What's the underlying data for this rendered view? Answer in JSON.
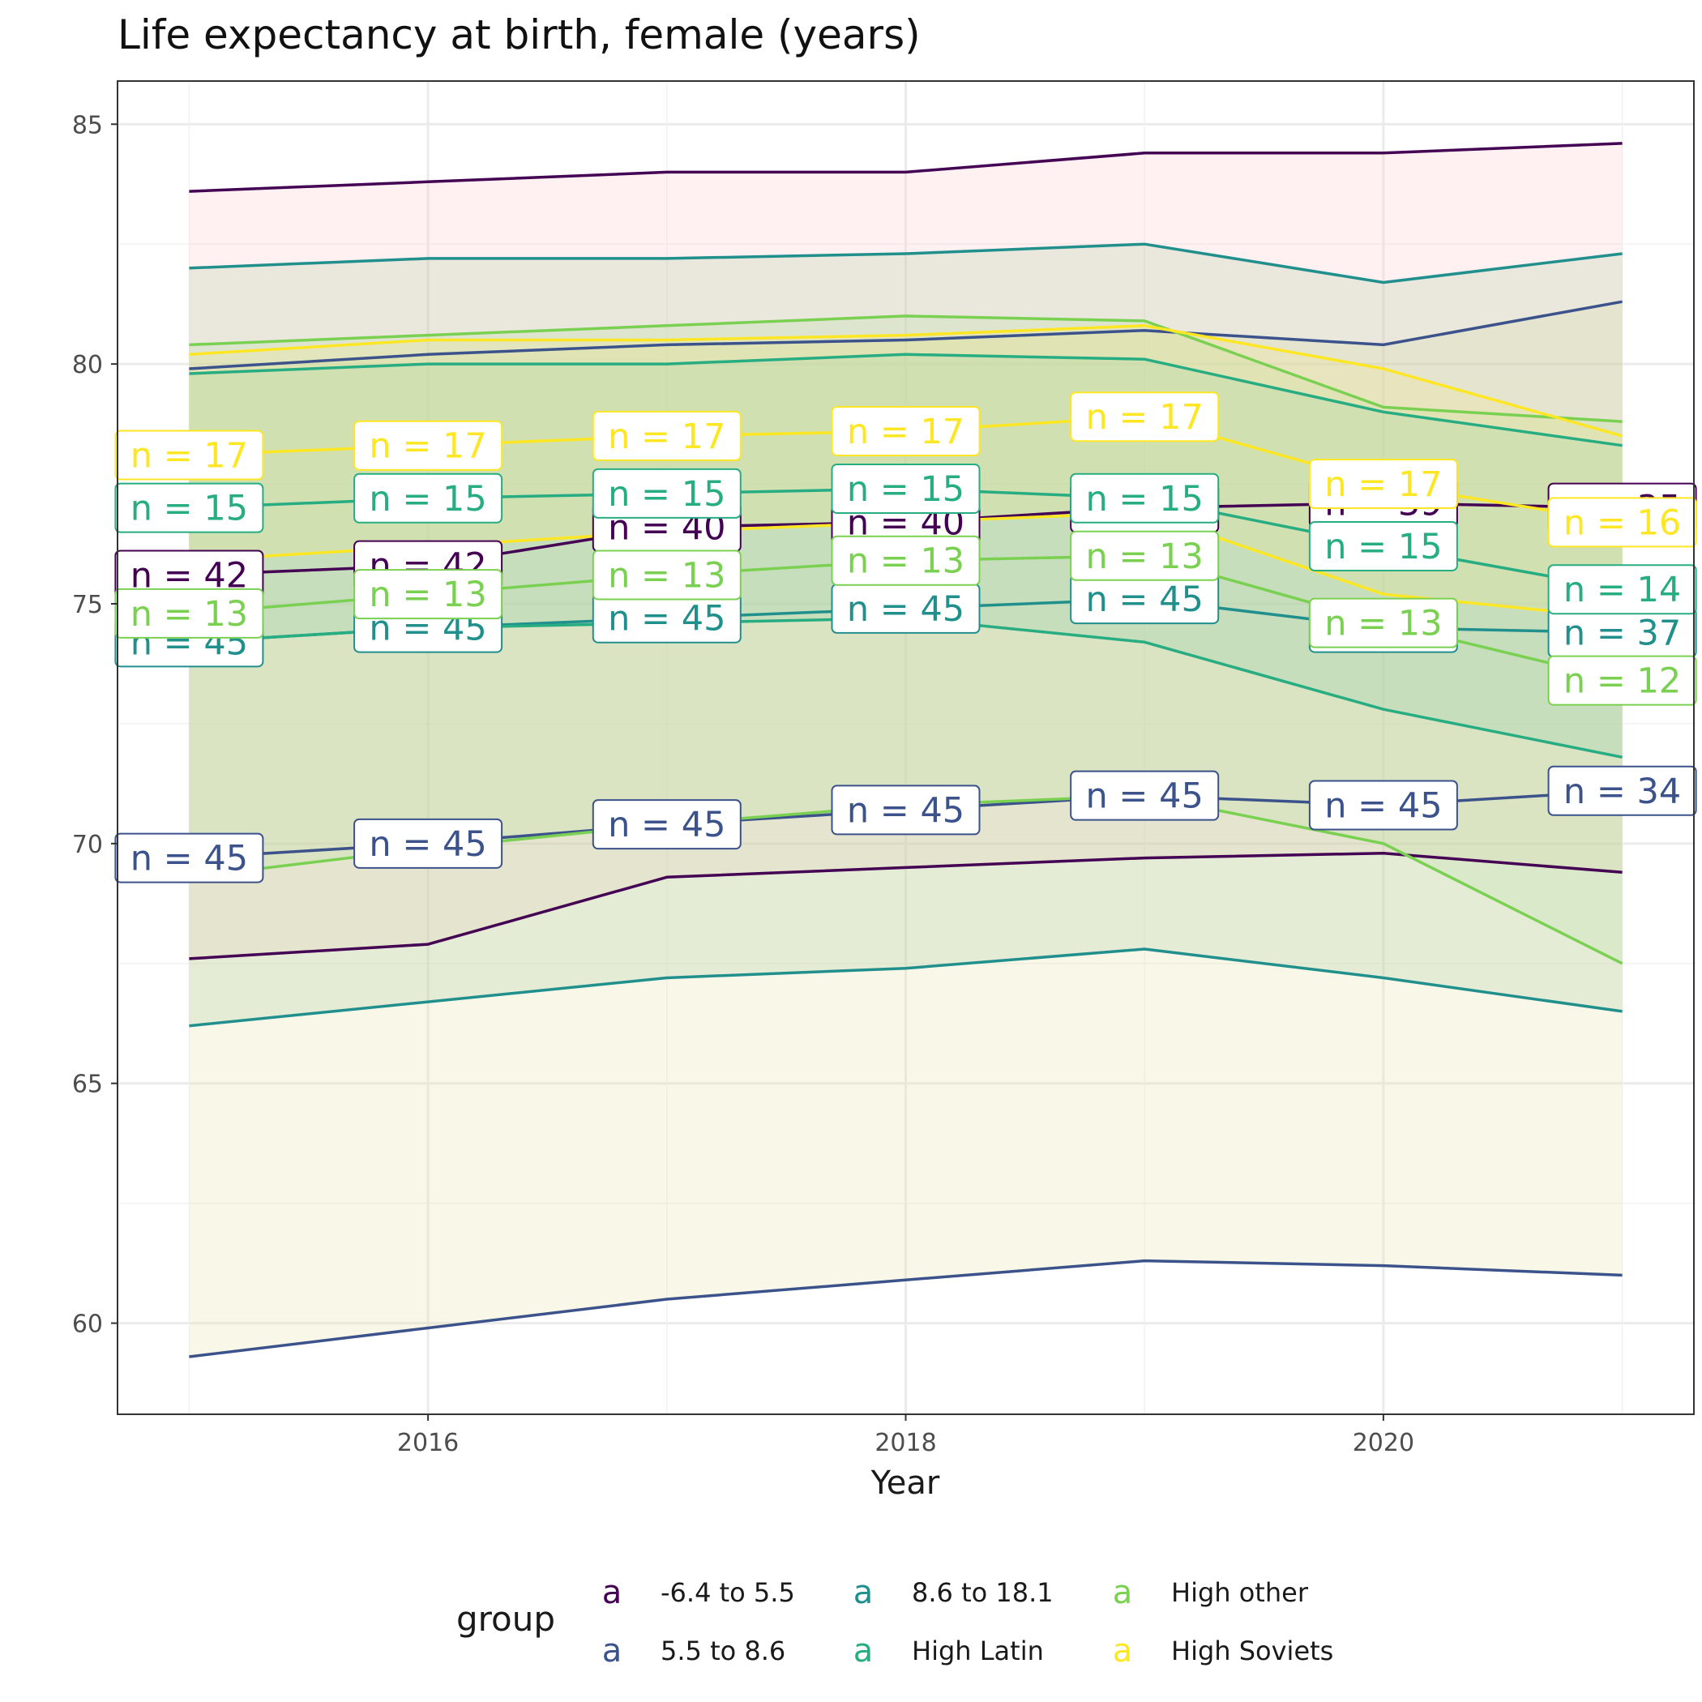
{
  "chart_data": {
    "type": "line",
    "title": "Life expectancy at birth, female (years)",
    "xlabel": "Year",
    "ylabel": "",
    "xlim": [
      2014.7,
      2021.3
    ],
    "ylim": [
      58.1,
      85.9
    ],
    "x_ticks": [
      2016,
      2018,
      2020
    ],
    "y_ticks": [
      60,
      65,
      70,
      75,
      80,
      85
    ],
    "grid": true,
    "legend": {
      "title": "group",
      "placement": "bottom",
      "key_glyph": "a",
      "entries": [
        "-6.4 to 5.5",
        "5.5 to 8.6",
        "8.6 to 18.1",
        "High Latin",
        "High other",
        "High Soviets"
      ]
    },
    "x": [
      2015,
      2016,
      2017,
      2018,
      2019,
      2020,
      2021
    ],
    "series": [
      {
        "name": "-6.4 to 5.5",
        "color": "#440154",
        "mean": [
          75.6,
          75.8,
          76.6,
          76.7,
          77.0,
          77.1,
          77.0
        ],
        "upper": [
          83.6,
          83.8,
          84.0,
          84.0,
          84.4,
          84.4,
          84.6
        ],
        "lower": [
          67.6,
          67.9,
          69.3,
          69.5,
          69.7,
          69.8,
          69.4
        ],
        "ribbon_color": "#ffc6c6",
        "labels": [
          "n = 42",
          "n = 42",
          "n = 40",
          "n = 40",
          "n = 39",
          "n = 39",
          "n = 35"
        ]
      },
      {
        "name": "5.5 to 8.6",
        "color": "#3b528b",
        "mean": [
          69.7,
          70.0,
          70.4,
          70.7,
          71.0,
          70.8,
          71.1
        ],
        "upper": [
          79.9,
          80.2,
          80.4,
          80.5,
          80.7,
          80.4,
          81.3
        ],
        "lower": [
          59.3,
          59.9,
          60.5,
          60.9,
          61.3,
          61.2,
          61.0
        ],
        "ribbon_color": "#e8e0a0",
        "labels": [
          "n = 45",
          "n = 45",
          "n = 45",
          "n = 45",
          "n = 45",
          "n = 45",
          "n = 34"
        ]
      },
      {
        "name": "8.6 to 18.1",
        "color": "#21908d",
        "mean": [
          74.2,
          74.5,
          74.7,
          74.9,
          75.1,
          74.5,
          74.4
        ],
        "upper": [
          82.0,
          82.2,
          82.2,
          82.3,
          82.5,
          81.7,
          82.3
        ],
        "lower": [
          66.2,
          66.7,
          67.2,
          67.4,
          67.8,
          67.2,
          66.5
        ],
        "ribbon_color": "#a8c8a0",
        "labels": [
          "n = 45",
          "n = 45",
          "n = 45",
          "n = 45",
          "n = 45",
          "n = 45",
          "n = 37"
        ]
      },
      {
        "name": "High Latin",
        "color": "#27ad81",
        "mean": [
          77.0,
          77.2,
          77.3,
          77.4,
          77.2,
          76.2,
          75.3
        ],
        "upper": [
          79.8,
          80.0,
          80.0,
          80.2,
          80.1,
          79.0,
          78.3
        ],
        "lower": [
          74.2,
          74.5,
          74.6,
          74.7,
          74.2,
          72.8,
          71.8
        ],
        "ribbon_color": "#7fc8b0",
        "labels": [
          "n = 15",
          "n = 15",
          "n = 15",
          "n = 15",
          "n = 15",
          "n = 15",
          "n = 14"
        ]
      },
      {
        "name": "High other",
        "color": "#7ad151",
        "mean": [
          74.8,
          75.2,
          75.6,
          75.9,
          76.0,
          74.6,
          73.4
        ],
        "upper": [
          80.4,
          80.6,
          80.8,
          81.0,
          80.9,
          79.1,
          78.8
        ],
        "lower": [
          69.3,
          69.9,
          70.4,
          70.8,
          71.0,
          70.0,
          67.5
        ],
        "ribbon_color": "#b8e0a0",
        "labels": [
          "n = 13",
          "n = 13",
          "n = 13",
          "n = 13",
          "n = 13",
          "n = 13",
          "n = 12"
        ]
      },
      {
        "name": "High Soviets",
        "color": "#fde725",
        "mean": [
          78.1,
          78.3,
          78.5,
          78.6,
          78.9,
          77.5,
          76.7
        ],
        "upper": [
          80.2,
          80.5,
          80.5,
          80.6,
          80.8,
          79.9,
          78.5
        ],
        "lower": [
          75.9,
          76.2,
          76.5,
          76.7,
          76.9,
          75.2,
          74.7
        ],
        "ribbon_color": "#f3e48c",
        "labels": [
          "n = 17",
          "n = 17",
          "n = 17",
          "n = 17",
          "n = 17",
          "n = 17",
          "n = 16"
        ]
      }
    ]
  }
}
